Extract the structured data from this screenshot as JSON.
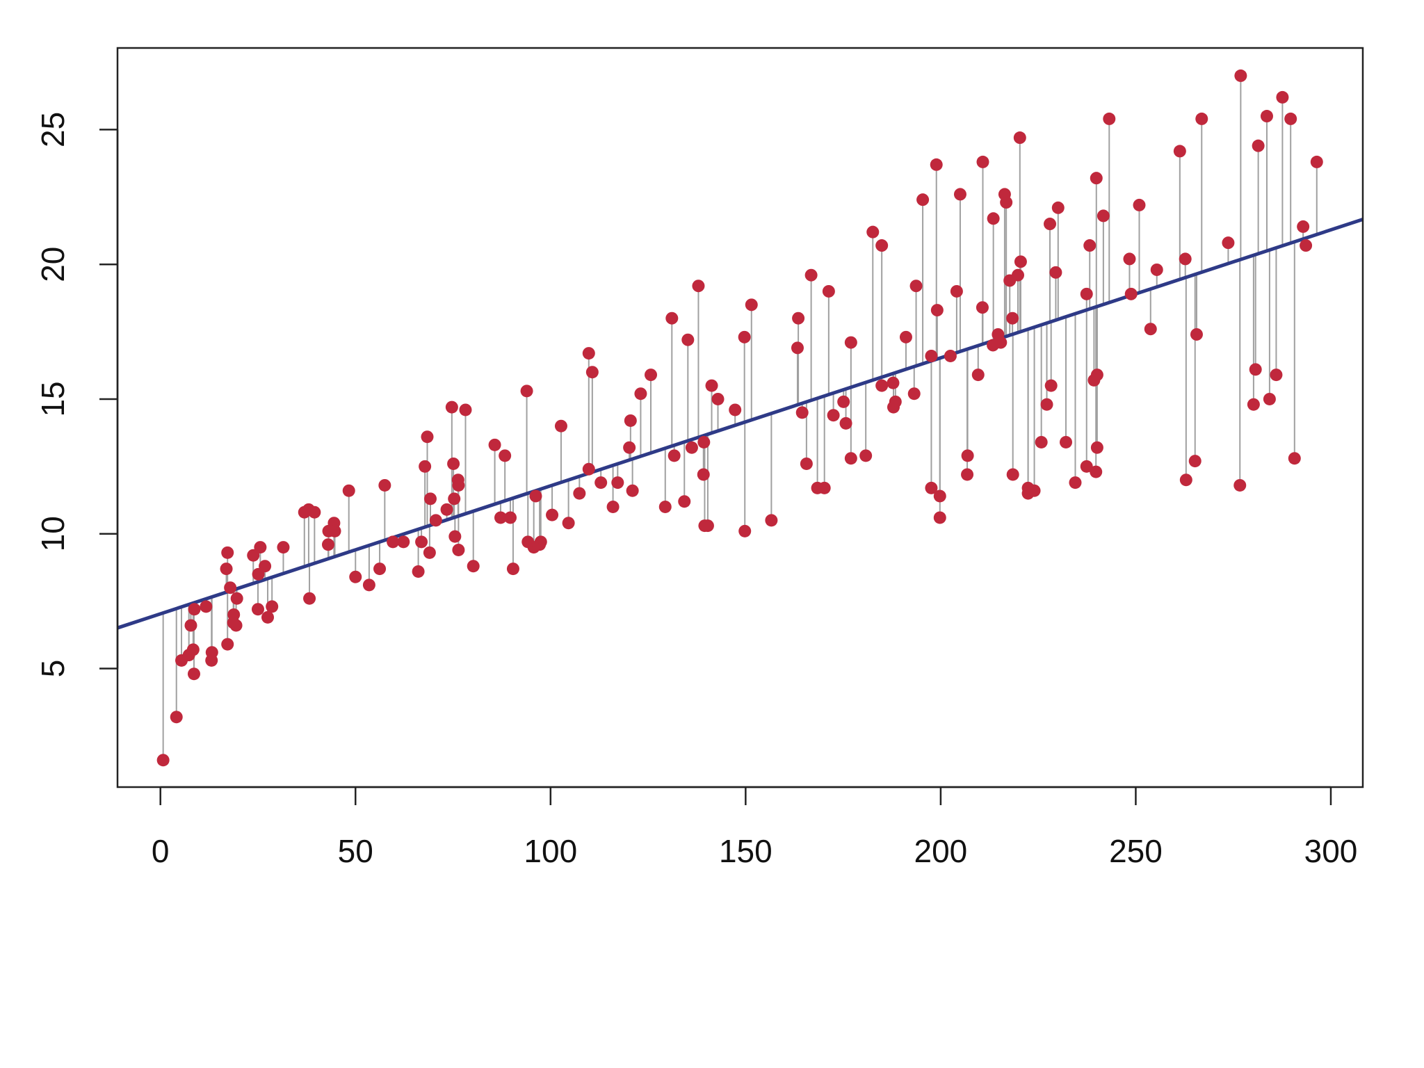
{
  "chart_data": {
    "type": "scatter",
    "x": [
      230.1,
      44.5,
      17.2,
      151.5,
      180.8,
      8.7,
      57.5,
      120.2,
      8.6,
      199.8,
      66.1,
      214.7,
      23.8,
      97.5,
      204.1,
      195.4,
      67.8,
      281.4,
      69.2,
      147.3,
      218.4,
      237.4,
      13.2,
      228.3,
      62.3,
      262.9,
      142.9,
      240.1,
      248.8,
      70.6,
      292.9,
      112.9,
      97.2,
      265.6,
      95.7,
      290.7,
      266.9,
      74.7,
      43.1,
      228,
      202.5,
      177,
      293.6,
      206.9,
      25.1,
      175.1,
      89.7,
      239.9,
      227.2,
      66.9,
      199.8,
      100.4,
      216.4,
      182.6,
      262.7,
      198.9,
      7.3,
      136.2,
      210.8,
      210.7,
      53.5,
      261.3,
      239.3,
      102.7,
      131.1,
      69,
      31.5,
      139.3,
      237.4,
      216.8,
      199.1,
      109.8,
      26.8,
      129.4,
      213.4,
      16.9,
      27.5,
      120.5,
      5.4,
      116,
      76.4,
      239.8,
      75.3,
      68.4,
      213.5,
      193.2,
      76.3,
      110.7,
      88.3,
      109.8,
      134.3,
      28.6,
      217.7,
      250.9,
      107.4,
      163.3,
      197.6,
      184.9,
      289.7,
      135.2,
      222.4,
      296.4,
      280.2,
      187.9,
      238.2,
      137.9,
      25,
      90.4,
      13.1,
      255.4,
      225.8,
      241.7,
      175.7,
      209.6,
      78.2,
      75.1,
      139.2,
      76.4,
      125.7,
      19.4,
      141.3,
      18.8,
      224,
      123.1,
      229.5,
      87.2,
      7.8,
      80.2,
      220.3,
      59.6,
      0.7,
      265.2,
      8.4,
      219.8,
      36.9,
      48.3,
      25.6,
      273.7,
      43,
      184.9,
      73.4,
      193.7,
      220.5,
      104.6,
      96.2,
      140.3,
      240.1,
      243.2,
      38,
      44.7,
      280.7,
      121,
      197.6,
      171.3,
      187.8,
      4.1,
      93.9,
      149.8,
      11.7,
      131.7,
      172.5,
      85.7,
      188.4,
      163.5,
      117.2,
      234.5,
      17.9,
      206.8,
      215.4,
      284.3,
      50,
      164.5,
      19.6,
      168.4,
      222.4,
      276.9,
      248.4,
      170.2,
      276.7,
      165.6,
      156.6,
      218.5,
      56.2,
      287.6,
      253.8,
      205,
      139.5,
      191.1,
      286,
      18.7,
      39.5,
      75.5,
      17.2,
      166.8,
      149.7,
      38.2,
      94.2,
      177,
      283.6,
      232.1
    ],
    "values": [
      22.1,
      10.4,
      9.3,
      18.5,
      12.9,
      7.2,
      11.8,
      13.2,
      4.8,
      10.6,
      8.6,
      17.4,
      9.2,
      9.7,
      19,
      22.4,
      12.5,
      24.4,
      11.3,
      14.6,
      18,
      12.5,
      5.6,
      15.5,
      9.7,
      12,
      15,
      15.9,
      18.9,
      10.5,
      21.4,
      11.9,
      9.6,
      17.4,
      9.5,
      12.8,
      25.4,
      14.7,
      10.1,
      21.5,
      16.6,
      17.1,
      20.7,
      12.9,
      8.5,
      14.9,
      10.6,
      23.2,
      14.8,
      9.7,
      11.4,
      10.7,
      22.6,
      21.2,
      20.2,
      23.7,
      5.5,
      13.2,
      23.8,
      18.4,
      8.1,
      24.2,
      15.7,
      14,
      18,
      9.3,
      9.5,
      13.4,
      18.9,
      22.3,
      18.3,
      12.4,
      8.8,
      11,
      17,
      8.7,
      6.9,
      14.2,
      5.3,
      11,
      11.8,
      12.3,
      11.3,
      13.6,
      21.7,
      15.2,
      12,
      16,
      12.9,
      16.7,
      11.2,
      7.3,
      19.4,
      22.2,
      11.5,
      16.9,
      11.7,
      15.5,
      25.4,
      17.2,
      11.7,
      23.8,
      14.8,
      14.7,
      20.7,
      19.2,
      7.2,
      8.7,
      5.3,
      19.8,
      13.4,
      21.8,
      14.1,
      15.9,
      14.6,
      12.6,
      12.2,
      9.4,
      15.9,
      6.6,
      15.5,
      7,
      11.6,
      15.2,
      19.7,
      10.6,
      6.6,
      8.8,
      24.7,
      9.7,
      1.6,
      12.7,
      5.7,
      19.6,
      10.8,
      11.6,
      9.5,
      20.8,
      9.6,
      20.7,
      10.9,
      19.2,
      20.1,
      10.4,
      11.4,
      10.3,
      13.2,
      25.4,
      10.9,
      10.1,
      16.1,
      11.6,
      16.6,
      19,
      15.6,
      3.2,
      15.3,
      10.1,
      7.3,
      12.9,
      14.4,
      13.3,
      14.9,
      18,
      11.9,
      11.9,
      8,
      12.2,
      17.1,
      15,
      8.4,
      14.5,
      7.6,
      11.7,
      11.5,
      27,
      20.2,
      11.7,
      11.8,
      12.6,
      10.5,
      12.2,
      8.7,
      26.2,
      17.6,
      22.6,
      10.3,
      17.3,
      15.9,
      6.7,
      10.8,
      9.9,
      5.9,
      19.6,
      17.3,
      7.6,
      9.7,
      12.8,
      25.5,
      13.4
    ],
    "color": "#c0283c",
    "line": {
      "intercept": 7.03,
      "slope": 0.0475,
      "color": "#2e3a87"
    },
    "residual_color": "#a0a0a0",
    "xlim": [
      -11,
      308.2
    ],
    "ylim": [
      0.6,
      28.03
    ],
    "xticks": [
      0,
      50,
      100,
      150,
      200,
      250,
      300
    ],
    "yticks": [
      5,
      10,
      15,
      20,
      25
    ]
  }
}
